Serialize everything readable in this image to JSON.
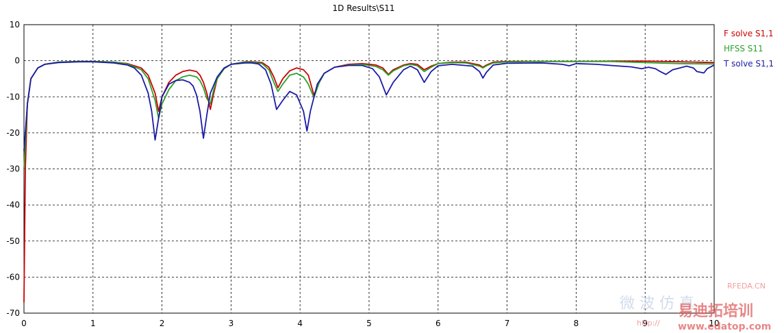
{
  "chart_data": {
    "type": "line",
    "title": "1D Results\\S11",
    "xlabel": "",
    "ylabel": "",
    "xlim": [
      0,
      10
    ],
    "ylim": [
      -70,
      10
    ],
    "x_ticks": [
      0,
      1,
      2,
      3,
      4,
      5,
      6,
      7,
      8,
      9,
      10
    ],
    "y_ticks": [
      10,
      0,
      -10,
      -20,
      -30,
      -40,
      -50,
      -60,
      -70
    ],
    "grid": true,
    "legend_position": "right",
    "series": [
      {
        "name": "F solve S1,1",
        "color": "#cc0000",
        "x": [
          0,
          0.02,
          0.05,
          0.1,
          0.2,
          0.3,
          0.5,
          0.8,
          1.0,
          1.3,
          1.5,
          1.7,
          1.8,
          1.9,
          1.95,
          2.0,
          2.1,
          2.2,
          2.3,
          2.4,
          2.5,
          2.55,
          2.6,
          2.65,
          2.7,
          2.75,
          2.8,
          2.9,
          3.0,
          3.2,
          3.3,
          3.45,
          3.55,
          3.62,
          3.68,
          3.75,
          3.85,
          3.95,
          4.05,
          4.12,
          4.2,
          4.28,
          4.35,
          4.5,
          4.7,
          4.9,
          5.1,
          5.2,
          5.28,
          5.35,
          5.5,
          5.6,
          5.7,
          5.8,
          5.9,
          6.0,
          6.2,
          6.4,
          6.6,
          6.65,
          6.7,
          6.8,
          7.0,
          7.5,
          8.0,
          8.5,
          9.0,
          9.5,
          10.0
        ],
        "y": [
          -67,
          -30,
          -12,
          -5,
          -2,
          -1,
          -0.4,
          -0.2,
          -0.2,
          -0.4,
          -0.8,
          -2,
          -4,
          -9,
          -14,
          -10,
          -6,
          -4,
          -3,
          -2.6,
          -3,
          -4,
          -6,
          -9,
          -13.5,
          -9,
          -5,
          -2.2,
          -1,
          -0.3,
          -0.3,
          -0.5,
          -1.8,
          -4.5,
          -7.5,
          -5,
          -2.8,
          -2,
          -2.5,
          -4,
          -9.5,
          -6,
          -3.5,
          -1.8,
          -1,
          -0.8,
          -1.2,
          -2,
          -3.8,
          -2.5,
          -1.2,
          -0.8,
          -1,
          -2.5,
          -1.5,
          -0.8,
          -0.4,
          -0.4,
          -1.2,
          -1.8,
          -1.2,
          -0.4,
          -0.2,
          -0.2,
          -0.2,
          -0.1,
          -0.1,
          -0.3,
          -0.5
        ]
      },
      {
        "name": "HFSS S11",
        "color": "#2aa02a",
        "x": [
          0,
          0.05,
          0.1,
          0.2,
          0.3,
          0.5,
          0.8,
          1.0,
          1.3,
          1.5,
          1.7,
          1.8,
          1.9,
          1.95,
          2.0,
          2.1,
          2.2,
          2.3,
          2.4,
          2.5,
          2.55,
          2.6,
          2.65,
          2.7,
          2.75,
          2.8,
          2.9,
          3.0,
          3.2,
          3.3,
          3.45,
          3.55,
          3.62,
          3.68,
          3.75,
          3.85,
          3.95,
          4.05,
          4.12,
          4.2,
          4.28,
          4.35,
          4.5,
          4.7,
          4.9,
          5.1,
          5.2,
          5.28,
          5.35,
          5.5,
          5.6,
          5.7,
          5.8,
          5.9,
          6.0,
          6.2,
          6.4,
          6.6,
          6.65,
          6.7,
          6.8,
          7.0,
          7.5,
          8.0,
          8.5,
          9.0,
          9.5,
          10.0
        ],
        "y": [
          -30,
          -12,
          -5,
          -2,
          -1,
          -0.4,
          -0.2,
          -0.2,
          -0.4,
          -0.9,
          -2.5,
          -5,
          -11,
          -16,
          -12,
          -8,
          -5.5,
          -4.5,
          -4,
          -4.5,
          -5.5,
          -7.5,
          -10.5,
          -12,
          -8,
          -5,
          -2.2,
          -1,
          -0.4,
          -0.4,
          -0.8,
          -2.5,
          -6,
          -8.5,
          -6.5,
          -4,
          -3.5,
          -4.5,
          -6.5,
          -10.2,
          -6,
          -3.5,
          -1.8,
          -1.2,
          -1,
          -1.6,
          -2.5,
          -4,
          -2.8,
          -1.4,
          -1,
          -1.4,
          -3,
          -1.8,
          -0.8,
          -0.5,
          -0.6,
          -1.5,
          -2,
          -1.4,
          -0.6,
          -0.3,
          -0.2,
          -0.2,
          -0.2,
          -0.5,
          -0.8,
          -0.9
        ]
      },
      {
        "name": "T solve S1,1",
        "color": "#1a1aa6",
        "x": [
          0,
          0.05,
          0.1,
          0.2,
          0.3,
          0.5,
          0.8,
          1.0,
          1.3,
          1.5,
          1.6,
          1.7,
          1.8,
          1.85,
          1.9,
          1.95,
          2.0,
          2.1,
          2.2,
          2.3,
          2.4,
          2.45,
          2.5,
          2.55,
          2.6,
          2.65,
          2.7,
          2.8,
          2.9,
          3.0,
          3.2,
          3.3,
          3.4,
          3.5,
          3.58,
          3.66,
          3.75,
          3.85,
          3.95,
          4.05,
          4.1,
          4.15,
          4.25,
          4.35,
          4.5,
          4.7,
          4.9,
          5.05,
          5.15,
          5.25,
          5.35,
          5.5,
          5.6,
          5.7,
          5.8,
          5.9,
          6.0,
          6.2,
          6.5,
          6.6,
          6.65,
          6.7,
          6.8,
          7.0,
          7.5,
          7.8,
          7.9,
          8.0,
          8.3,
          8.5,
          8.8,
          8.95,
          9.05,
          9.15,
          9.2,
          9.3,
          9.4,
          9.5,
          9.6,
          9.7,
          9.75,
          9.85,
          9.9,
          10.0
        ],
        "y": [
          -25,
          -12,
          -5,
          -2,
          -1,
          -0.5,
          -0.3,
          -0.3,
          -0.6,
          -1.2,
          -2,
          -4,
          -9,
          -14,
          -22,
          -16,
          -10,
          -6.5,
          -5.5,
          -5.3,
          -6,
          -7,
          -9.5,
          -14,
          -21.5,
          -15,
          -9,
          -4.5,
          -2,
          -1,
          -0.6,
          -0.6,
          -0.9,
          -2.5,
          -6.5,
          -13.5,
          -11,
          -8.5,
          -9.5,
          -14,
          -19.5,
          -14,
          -6.5,
          -3.5,
          -1.8,
          -1.3,
          -1.3,
          -2.2,
          -4.5,
          -9.5,
          -6,
          -2.5,
          -1.5,
          -2.5,
          -6,
          -3,
          -1.4,
          -1,
          -1.5,
          -3,
          -4.8,
          -3.2,
          -1.2,
          -0.7,
          -0.6,
          -1,
          -1.4,
          -0.8,
          -1,
          -1.3,
          -1.7,
          -2.2,
          -1.8,
          -2.2,
          -2.8,
          -3.8,
          -2.5,
          -2,
          -1.5,
          -2,
          -3,
          -3.4,
          -2.2,
          -1.2
        ]
      }
    ]
  },
  "watermark": {
    "site_label": "RFEDA.CN",
    "chinese_small": "微 波 仿 真",
    "chinese_large": "易迪拓培训",
    "url": "www.edatop.com",
    "url_prefix": "http://"
  }
}
